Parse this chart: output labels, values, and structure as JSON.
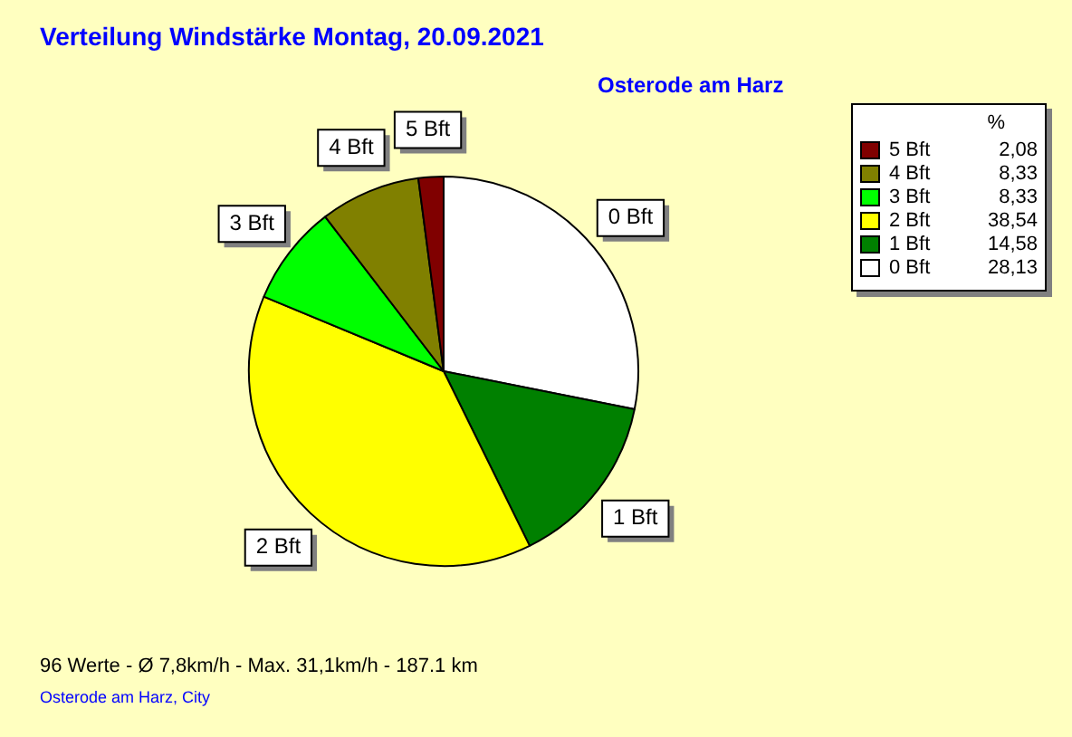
{
  "chart_data": {
    "type": "pie",
    "title": "Verteilung Windstärke  Montag, 20.09.2021",
    "subtitle": "Osterode am Harz",
    "legend_title": "%",
    "categories": [
      "0 Bft",
      "1 Bft",
      "2 Bft",
      "3 Bft",
      "4 Bft",
      "5 Bft"
    ],
    "values": [
      28.13,
      14.58,
      38.54,
      8.33,
      8.33,
      2.08
    ],
    "value_labels": [
      "28,13",
      "14,58",
      "38,54",
      "8,33",
      "8,33",
      "2,08"
    ],
    "colors": [
      "#ffffff",
      "#008000",
      "#ffff00",
      "#00ff00",
      "#808000",
      "#800000"
    ],
    "legend": "top right",
    "annotations": [
      "96 Werte  -  Ø 7,8km/h  -  Max. 31,1km/h  -  187.1 km",
      "Osterode am Harz, City"
    ]
  }
}
